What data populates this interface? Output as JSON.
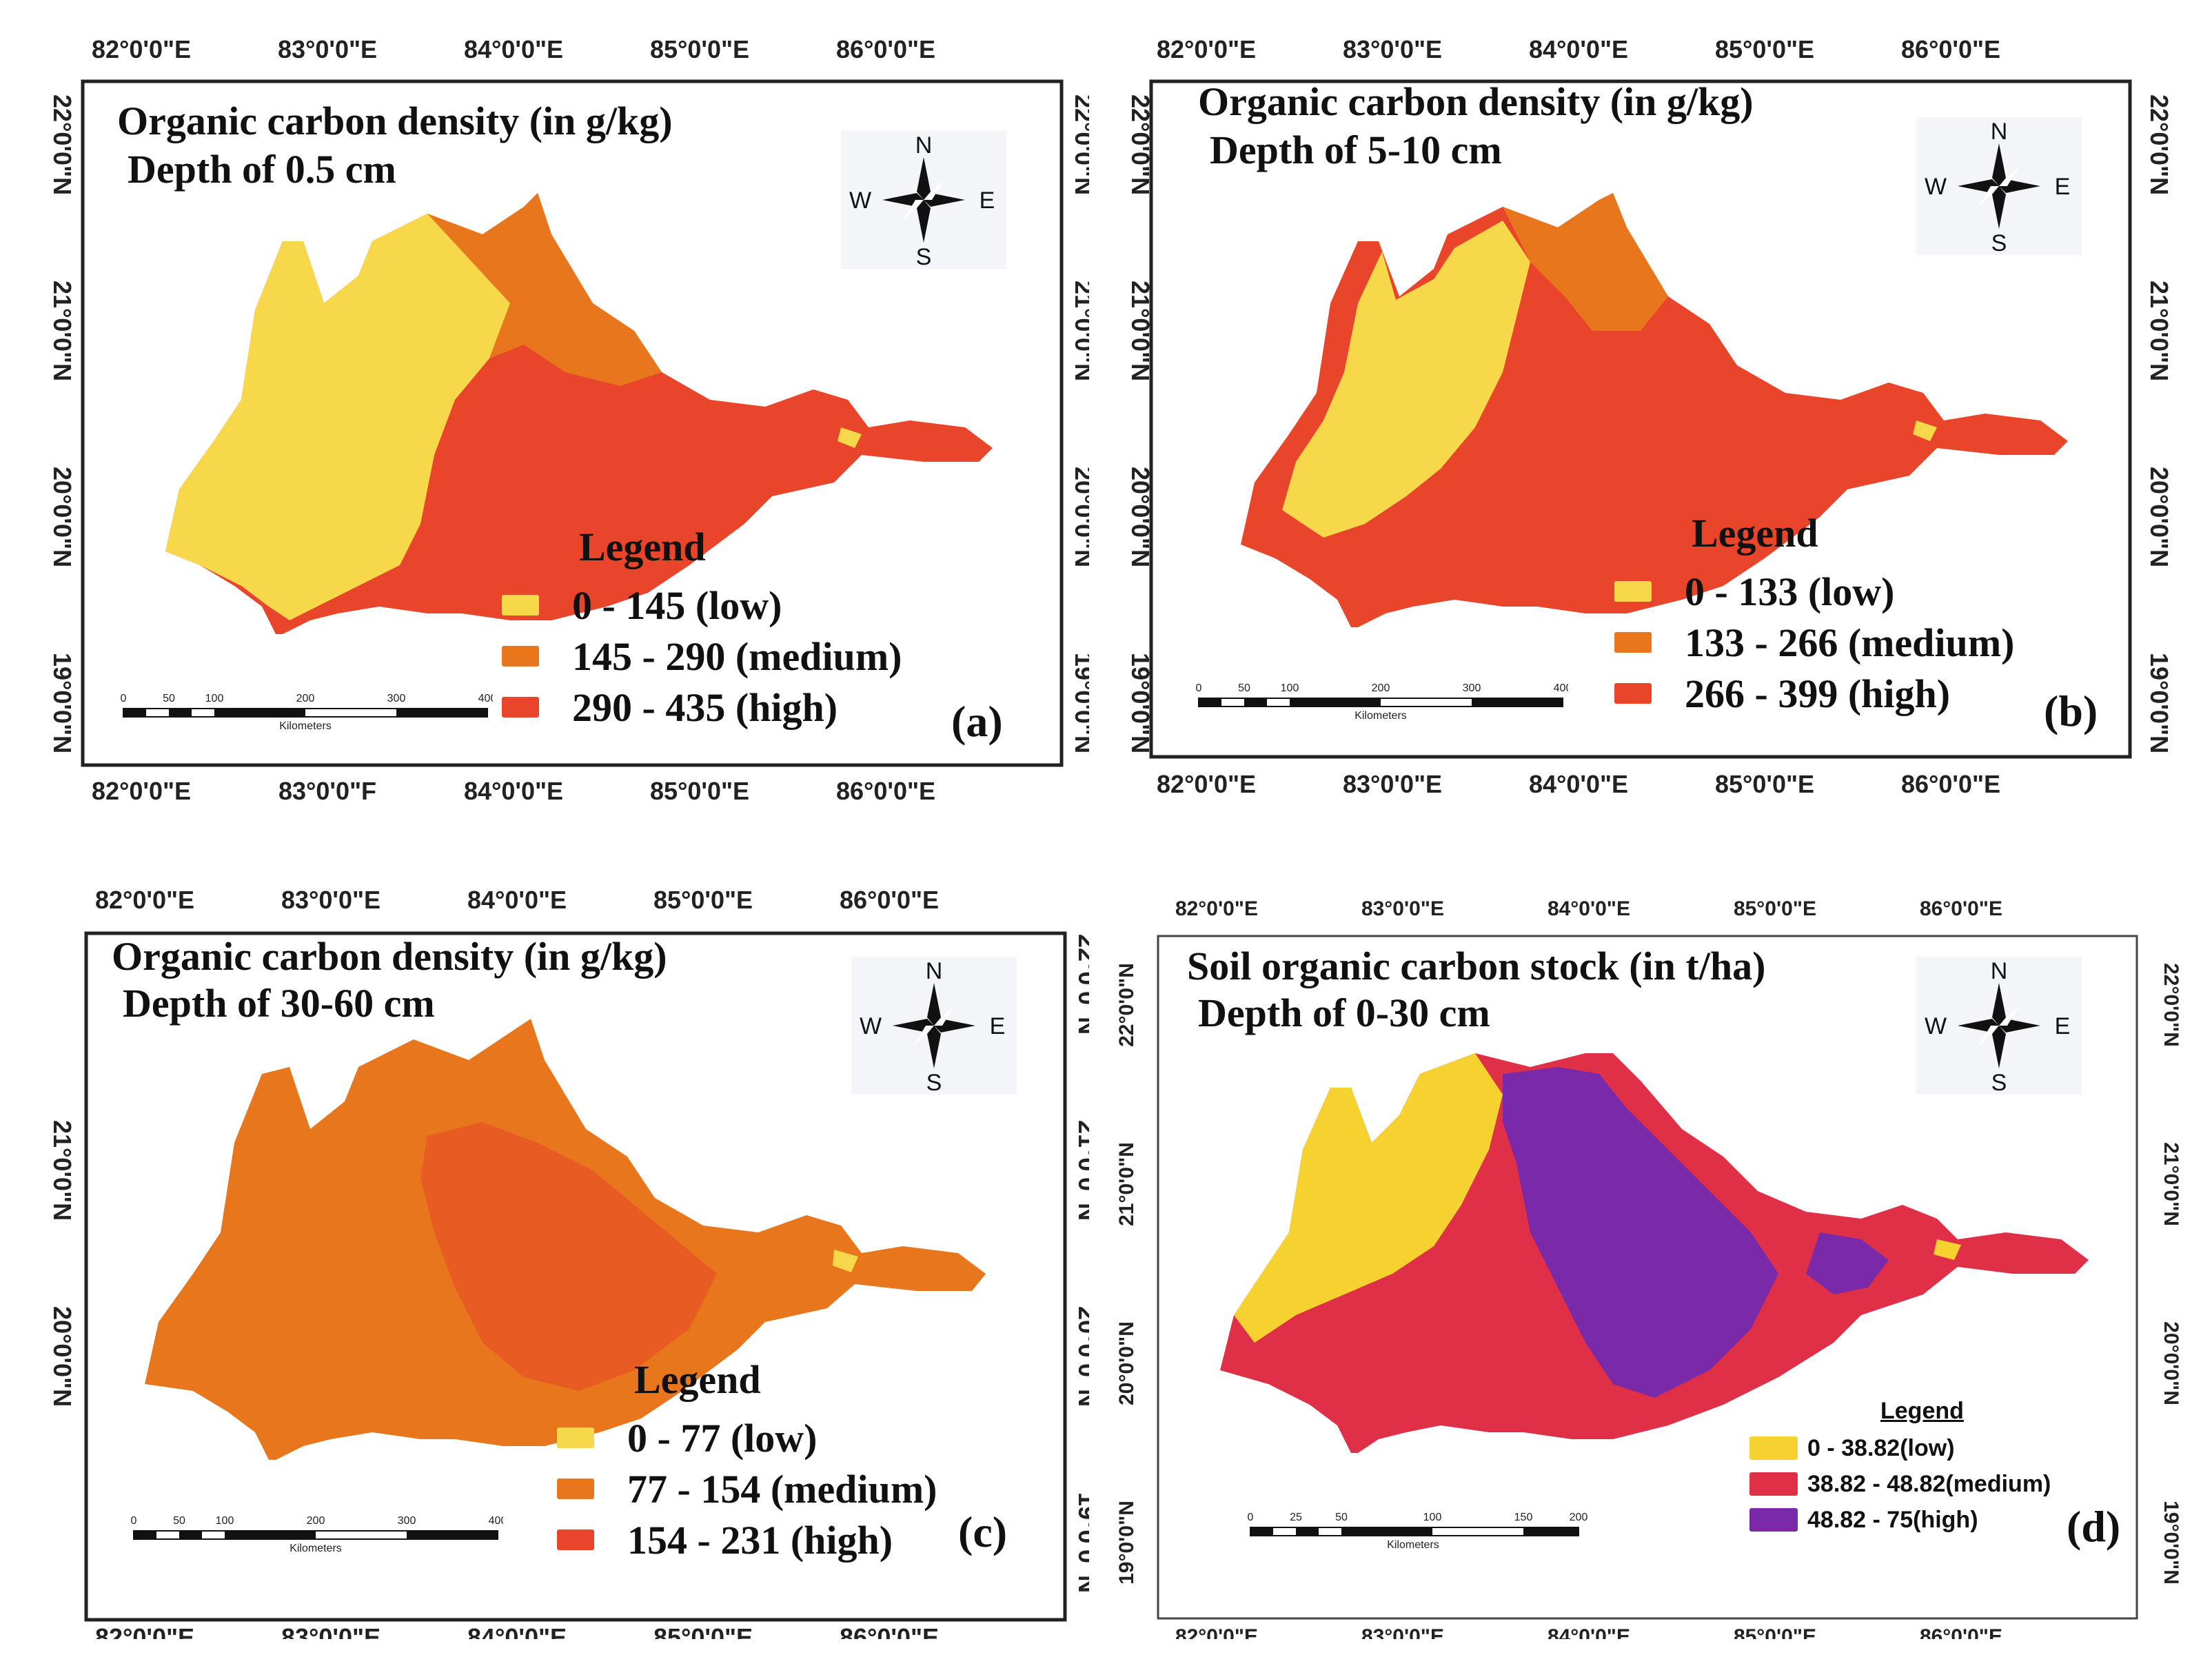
{
  "ticks": {
    "lon": [
      "82°0'0\"E",
      "83°0'0\"E",
      "84°0'0\"E",
      "85°0'0\"E",
      "86°0'0\"E"
    ],
    "lon_a_bottom": [
      "82°0'0\"E",
      "83°0'0\"F",
      "84°0'0\"E",
      "85°0'0\"E",
      "86°0'0\"E"
    ],
    "lat": [
      "22°0'0\"N",
      "21°0'0\"N",
      "20°0'0\"N",
      "19°0'0\"N"
    ]
  },
  "compass": {
    "n": "N",
    "s": "S",
    "e": "E",
    "w": "W"
  },
  "scale_a": {
    "labels": [
      "0",
      "50",
      "100",
      "200",
      "300",
      "400"
    ],
    "unit": "Kilometers"
  },
  "scale_d": {
    "labels": [
      "0",
      "25",
      "50",
      "100",
      "150",
      "200"
    ],
    "unit": "Kilometers"
  },
  "panels": {
    "a": {
      "title1": "Organic carbon density (in g/kg)",
      "title2": "Depth of 0.5 cm",
      "legend_title": "Legend",
      "legend": [
        "0 - 145 (low)",
        "145 - 290 (medium)",
        "290 - 435 (high)"
      ],
      "label": "(a)"
    },
    "b": {
      "title1": "Organic carbon density (in g/kg)",
      "title2": "Depth of 5-10 cm",
      "legend_title": "Legend",
      "legend": [
        "0 - 133 (low)",
        "133 - 266 (medium)",
        "266 - 399 (high)"
      ],
      "label": "(b)"
    },
    "c": {
      "title1": "Organic carbon density (in g/kg)",
      "title2": "Depth of 30-60 cm",
      "legend_title": "Legend",
      "legend": [
        "0 - 77 (low)",
        "77 - 154 (medium)",
        "154 - 231 (high)"
      ],
      "label": "(c)"
    },
    "d": {
      "title1": "Soil organic carbon stock (in t/ha)",
      "title2": "Depth of 0-30 cm",
      "legend_title": "Legend",
      "legend": [
        "0 - 38.82(low)",
        "38.82 - 48.82(medium)",
        "48.82 - 75(high)"
      ],
      "label": "(d)"
    }
  },
  "colors": {
    "low": "#f7d84a",
    "medium": "#e8761c",
    "high": "#e8452a",
    "d_low": "#f6d230",
    "d_medium": "#e03048",
    "d_high": "#7a2aa8"
  }
}
